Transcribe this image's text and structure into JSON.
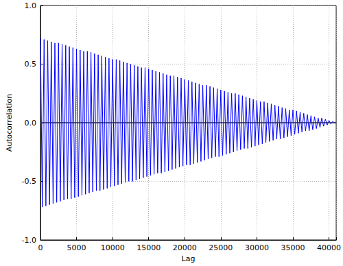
{
  "chart_data": {
    "type": "line",
    "x_label": "Lag",
    "y_label": "Autocorrelation",
    "color": "#0000ff",
    "grid": true,
    "xlim": [
      0,
      41000
    ],
    "xticks": [
      0,
      5000,
      10000,
      15000,
      20000,
      25000,
      30000,
      35000,
      40000
    ],
    "ylim": [
      -1,
      1
    ],
    "yticks": [
      {
        "value": -1,
        "label": "-1.0"
      },
      -0.5,
      {
        "value": 0,
        "label": "0.0"
      },
      0.5,
      {
        "value": 1,
        "label": "1.0"
      }
    ],
    "hlines": [
      0
    ],
    "x": [
      0,
      250,
      500,
      750,
      1000,
      1250,
      1500,
      1750,
      2000,
      2250,
      2500,
      2750,
      3000,
      3250,
      3500,
      3750,
      4000,
      4250,
      4500,
      4750,
      5000,
      5250,
      5500,
      5750,
      6000,
      6250,
      6500,
      6750,
      7000,
      7250,
      7500,
      7750,
      8000,
      8250,
      8500,
      8750,
      9000,
      9250,
      9500,
      9750,
      10000,
      10250,
      10500,
      10750,
      11000,
      11250,
      11500,
      11750,
      12000,
      12250,
      12500,
      12750,
      13000,
      13250,
      13500,
      13750,
      14000,
      14250,
      14500,
      14750,
      15000,
      15250,
      15500,
      15750,
      16000,
      16250,
      16500,
      16750,
      17000,
      17250,
      17500,
      17750,
      18000,
      18250,
      18500,
      18750,
      19000,
      19250,
      19500,
      19750,
      20000,
      20250,
      20500,
      20750,
      21000,
      21250,
      21500,
      21750,
      22000,
      22250,
      22500,
      22750,
      23000,
      23250,
      23500,
      23750,
      24000,
      24250,
      24500,
      24750,
      25000,
      25250,
      25500,
      25750,
      26000,
      26250,
      26500,
      26750,
      27000,
      27250,
      27500,
      27750,
      28000,
      28250,
      28500,
      28750,
      29000,
      29250,
      29500,
      29750,
      30000,
      30250,
      30500,
      30750,
      31000,
      31250,
      31500,
      31750,
      32000,
      32250,
      32500,
      32750,
      33000,
      33250,
      33500,
      33750,
      34000,
      34250,
      34500,
      34750,
      35000,
      35250,
      35500,
      35750,
      36000,
      36250,
      36500,
      36750,
      37000,
      37250,
      37500,
      37750,
      38000,
      38250,
      38500,
      38750,
      39000,
      39250,
      39500,
      39750,
      40000,
      40250,
      40500,
      40750,
      41000
    ],
    "values": [
      0.72,
      -0.72,
      0.71,
      -0.71,
      0.7,
      -0.7,
      0.69,
      -0.69,
      0.68,
      -0.68,
      0.68,
      -0.67,
      0.67,
      -0.66,
      0.66,
      -0.65,
      0.65,
      -0.65,
      0.64,
      -0.64,
      0.63,
      -0.63,
      0.62,
      -0.62,
      0.61,
      -0.61,
      0.61,
      -0.6,
      0.6,
      -0.59,
      0.59,
      -0.58,
      0.58,
      -0.58,
      0.57,
      -0.57,
      0.56,
      -0.56,
      0.55,
      -0.55,
      0.54,
      -0.54,
      0.54,
      -0.53,
      0.53,
      -0.52,
      0.52,
      -0.51,
      0.51,
      -0.5,
      0.5,
      -0.5,
      0.49,
      -0.49,
      0.48,
      -0.48,
      0.47,
      -0.47,
      0.47,
      -0.46,
      0.46,
      -0.45,
      0.45,
      -0.44,
      0.44,
      -0.43,
      0.43,
      -0.43,
      0.42,
      -0.42,
      0.41,
      -0.41,
      0.4,
      -0.4,
      0.4,
      -0.39,
      0.39,
      -0.38,
      0.38,
      -0.37,
      0.37,
      -0.36,
      0.36,
      -0.36,
      0.35,
      -0.35,
      0.34,
      -0.34,
      0.33,
      -0.33,
      0.32,
      -0.32,
      0.32,
      -0.31,
      0.31,
      -0.3,
      0.3,
      -0.29,
      0.29,
      -0.29,
      0.28,
      -0.28,
      0.27,
      -0.27,
      0.26,
      -0.26,
      0.25,
      -0.25,
      0.25,
      -0.24,
      0.24,
      -0.23,
      0.23,
      -0.22,
      0.22,
      -0.22,
      0.21,
      -0.21,
      0.2,
      -0.2,
      0.19,
      -0.19,
      0.18,
      -0.18,
      0.18,
      -0.17,
      0.17,
      -0.16,
      0.16,
      -0.15,
      0.15,
      -0.14,
      0.14,
      -0.14,
      0.13,
      -0.13,
      0.12,
      -0.12,
      0.11,
      -0.11,
      0.11,
      -0.1,
      0.1,
      -0.09,
      0.09,
      -0.08,
      0.08,
      -0.07,
      0.07,
      -0.07,
      0.06,
      -0.06,
      0.05,
      -0.05,
      0.04,
      -0.04,
      0.04,
      -0.03,
      0.03,
      -0.02,
      0.02,
      -0.01,
      0.01,
      0,
      0
    ]
  }
}
